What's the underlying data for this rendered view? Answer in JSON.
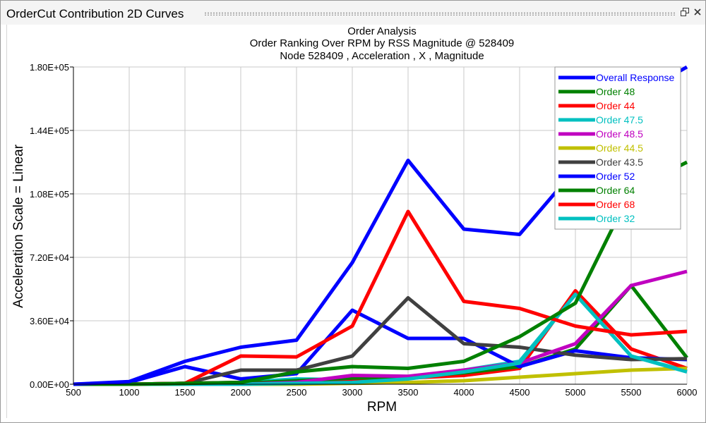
{
  "panel": {
    "title": "OrderCut Contribution 2D Curves",
    "restore_icon": "restore-window-icon",
    "close_icon": "close-icon"
  },
  "chart_data": {
    "type": "line",
    "title": "Order Analysis",
    "subtitle": "Order Ranking Over RPM by RSS Magnitude @ 528409",
    "subtitle2": "Node 528409 , Acceleration , X , Magnitude",
    "xlabel": "RPM",
    "ylabel": "Acceleration Scale = Linear",
    "xlim": [
      500,
      6000
    ],
    "ylim": [
      0,
      180000
    ],
    "x_ticks": [
      "500",
      "1000",
      "1500",
      "2000",
      "2500",
      "3000",
      "3500",
      "4000",
      "4500",
      "5000",
      "5500",
      "6000"
    ],
    "y_ticks": [
      "0.00E+00",
      "3.60E+04",
      "7.20E+04",
      "1.08E+05",
      "1.44E+05",
      "1.80E+05"
    ],
    "grid": true,
    "legend_position": "top-right",
    "x": [
      500,
      1000,
      1500,
      2000,
      2500,
      3000,
      3500,
      4000,
      4500,
      5000,
      5500,
      6000
    ],
    "series": [
      {
        "name": "Overall Response",
        "color": "#0000ff",
        "values": [
          0,
          1500,
          13000,
          21000,
          25000,
          69000,
          127000,
          88000,
          85000,
          122000,
          162000,
          181000
        ]
      },
      {
        "name": "Order 48",
        "color": "#008000",
        "values": [
          0,
          0,
          500,
          1000,
          7000,
          10000,
          9000,
          13000,
          27000,
          46000,
          110000,
          126000
        ]
      },
      {
        "name": "Order 44",
        "color": "#ff0000",
        "values": [
          0,
          0,
          500,
          16000,
          15500,
          33000,
          98000,
          47000,
          43000,
          33000,
          28000,
          30000
        ]
      },
      {
        "name": "Order 47.5",
        "color": "#00c0c0",
        "values": [
          0,
          0,
          0,
          0,
          500,
          1000,
          3000,
          7000,
          12000,
          51000,
          16000,
          7000
        ]
      },
      {
        "name": "Order 48.5",
        "color": "#c000c0",
        "values": [
          0,
          0,
          0,
          0,
          1000,
          5000,
          4500,
          8000,
          12000,
          23000,
          56000,
          64000
        ]
      },
      {
        "name": "Order 44.5",
        "color": "#c0c000",
        "values": [
          0,
          0,
          0,
          0,
          0,
          500,
          1000,
          2000,
          4000,
          6000,
          8000,
          9000
        ]
      },
      {
        "name": "Order 43.5",
        "color": "#404040",
        "values": [
          0,
          0,
          500,
          8000,
          8000,
          16000,
          49000,
          23000,
          21000,
          16500,
          14000,
          14500
        ]
      },
      {
        "name": "Order 52",
        "color": "#0000ff",
        "values": [
          0,
          1000,
          10000,
          3000,
          6000,
          42000,
          26000,
          26000,
          10000,
          19000,
          15000,
          14000
        ]
      },
      {
        "name": "Order 64",
        "color": "#008000",
        "values": [
          0,
          0,
          0,
          500,
          2000,
          3500,
          4000,
          6500,
          10000,
          20000,
          56000,
          15000
        ]
      },
      {
        "name": "Order 68",
        "color": "#ff0000",
        "values": [
          0,
          0,
          500,
          1000,
          500,
          2000,
          3500,
          5000,
          9000,
          53000,
          20000,
          9000
        ]
      },
      {
        "name": "Order 32",
        "color": "#00c0c0",
        "values": [
          0,
          0,
          500,
          1000,
          3000,
          2500,
          4000,
          8000,
          13000,
          51000,
          16000,
          7500
        ]
      }
    ]
  }
}
